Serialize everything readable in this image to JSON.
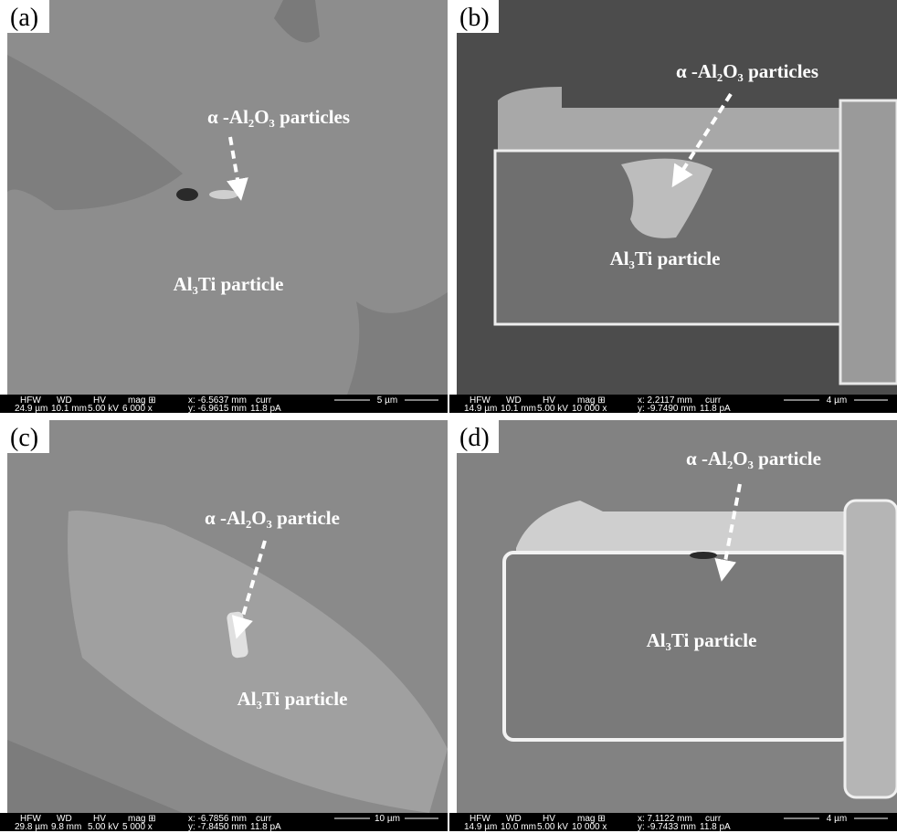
{
  "databar_headers": [
    "HFW",
    "WD",
    "HV",
    "mag ⊞",
    "curr"
  ],
  "panels": [
    {
      "label": "(a)",
      "arrow_label": "α -Al₂O₃ particles",
      "body_label": "Al₃Ti particle",
      "databar": {
        "hfw": "24.9 µm",
        "wd": "10.1 mm",
        "hv": "5.00 kV",
        "mag": "6 000 x",
        "x": "x: -6.5637 mm",
        "y": "y: -6.9615 mm",
        "curr": "11.8 pA",
        "scale": "5 µm"
      }
    },
    {
      "label": "(b)",
      "arrow_label": "α -Al₂O₃ particles",
      "body_label": "Al₃Ti particle",
      "databar": {
        "hfw": "14.9 µm",
        "wd": "10.1 mm",
        "hv": "5.00 kV",
        "mag": "10 000 x",
        "x": "x: 2.2117 mm",
        "y": "y: -9.7490 mm",
        "curr": "11.8 pA",
        "scale": "4 µm"
      }
    },
    {
      "label": "(c)",
      "arrow_label": "α -Al₂O₃ particle",
      "body_label": "Al₃Ti particle",
      "databar": {
        "hfw": "29.8 µm",
        "wd": "9.8 mm",
        "hv": "5.00 kV",
        "mag": "5 000 x",
        "x": "x: -6.7856 mm",
        "y": "y: -7.8450 mm",
        "curr": "11.8 pA",
        "scale": "10 µm"
      }
    },
    {
      "label": "(d)",
      "arrow_label": "α -Al₂O₃ particle",
      "body_label": "Al₃Ti particle",
      "databar": {
        "hfw": "14.9 µm",
        "wd": "10.0 mm",
        "hv": "5.00 kV",
        "mag": "10 000 x",
        "x": "x: 7.1122 mm",
        "y": "y: -9.7433 mm",
        "curr": "11.8 pA",
        "scale": "4 µm"
      }
    }
  ]
}
